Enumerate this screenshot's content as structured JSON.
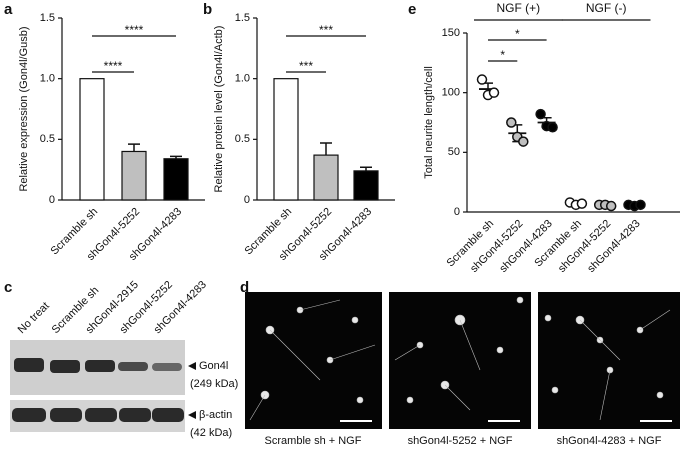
{
  "chart_data": [
    {
      "type": "bar",
      "panel": "a",
      "y_label": "Relative expression (Gon4l/Gusb)",
      "categories": [
        "Scramble sh",
        "shGon4l-5252",
        "shGon4l-4283"
      ],
      "values": [
        1.0,
        0.4,
        0.34
      ],
      "errors": [
        0,
        0.06,
        0.02
      ],
      "colors": [
        "#ffffff",
        "#bfbfbf",
        "#000000"
      ],
      "ylim": [
        0,
        1.5
      ],
      "yticks": [
        0,
        0.5,
        {
          "value": 1,
          "label": "1.0"
        },
        1.5
      ],
      "annotations": [
        "****",
        "****"
      ]
    },
    {
      "type": "bar",
      "panel": "b",
      "y_label": "Relative protein level (Gon4l/Actb)",
      "categories": [
        "Scramble sh",
        "shGon4l-5252",
        "shGon4l-4283"
      ],
      "values": [
        1.0,
        0.37,
        0.24
      ],
      "errors": [
        0,
        0.1,
        0.03
      ],
      "colors": [
        "#ffffff",
        "#bfbfbf",
        "#000000"
      ],
      "ylim": [
        0,
        1.5
      ],
      "yticks": [
        0,
        0.5,
        {
          "value": 1,
          "label": "1.0"
        },
        1.5
      ],
      "annotations": [
        "***",
        "***"
      ]
    },
    {
      "type": "dot",
      "panel": "e",
      "y_label": "Total neurite length/cell",
      "groups": [
        "NGF (+)",
        "NGF (-)"
      ],
      "categories": [
        "Scramble sh",
        "shGon4l-5252",
        "shGon4l-4283",
        "Scramble sh",
        "shGon4l-5252",
        "shGon4l-4283"
      ],
      "points": [
        [
          111,
          98,
          100
        ],
        [
          75,
          63,
          59
        ],
        [
          82,
          72,
          71
        ],
        [
          8,
          6,
          7
        ],
        [
          6,
          6,
          5
        ],
        [
          6,
          5,
          6
        ]
      ],
      "means": [
        103,
        66,
        75,
        7,
        6,
        6
      ],
      "errors": [
        5,
        7,
        4,
        0.6,
        0.4,
        0.4
      ],
      "colors": [
        "#ffffff",
        "#bfbfbf",
        "#000000",
        "#ffffff",
        "#bfbfbf",
        "#000000"
      ],
      "ylim": [
        0,
        150
      ],
      "yticks": [
        0,
        50,
        100,
        150
      ],
      "annotations": [
        "*",
        "*"
      ]
    }
  ],
  "western_blot": {
    "panel": "c",
    "lanes": [
      "No treat",
      "Scramble sh",
      "shGon4l-2915",
      "shGon4l-5252",
      "shGon4l-4283"
    ],
    "bands": [
      {
        "name": "Gon4l",
        "size": "(249 kDa)"
      },
      {
        "name": "β-actin",
        "size": "(42 kDa)"
      }
    ]
  },
  "micrographs": {
    "panel": "d",
    "captions": [
      "Scramble sh + NGF",
      "shGon4l-5252 + NGF",
      "shGon4l-4283 + NGF"
    ]
  }
}
